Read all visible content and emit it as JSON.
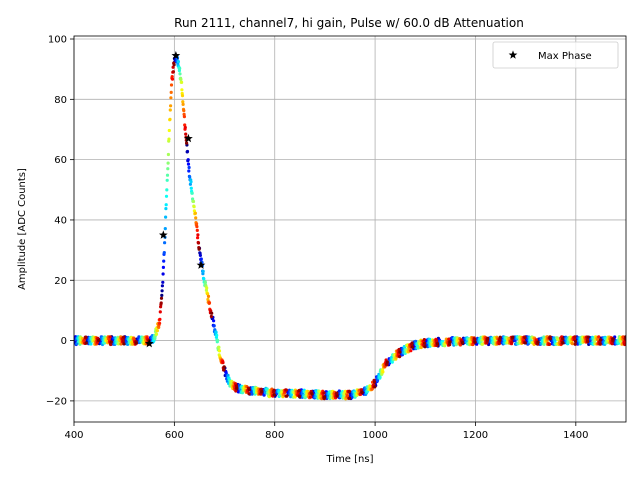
{
  "chart_data": {
    "type": "scatter",
    "title": "Run 2111, channel7, hi gain, Pulse w/ 60.0 dB Attenuation",
    "xlabel": "Time [ns]",
    "ylabel": "Amplitude [ADC Counts]",
    "xlim": [
      400,
      1500
    ],
    "ylim": [
      -27,
      101
    ],
    "xticks": [
      400,
      600,
      800,
      1000,
      1200,
      1400
    ],
    "yticks": [
      -20,
      0,
      20,
      40,
      60,
      80,
      100
    ],
    "grid": true,
    "legend": {
      "position": "top-right",
      "entries": [
        "Max Phase"
      ]
    },
    "colormap": "jet",
    "series": [
      {
        "name": "Max Phase",
        "marker": "star",
        "color": "#000000",
        "x": [
          550,
          578,
          603,
          628,
          653
        ],
        "y": [
          -1,
          35,
          94.5,
          67,
          25
        ]
      }
    ],
    "waveform": {
      "points": [
        [
          400,
          0
        ],
        [
          550,
          0
        ],
        [
          560,
          1
        ],
        [
          570,
          6
        ],
        [
          575,
          14
        ],
        [
          580,
          30
        ],
        [
          585,
          50
        ],
        [
          590,
          70
        ],
        [
          595,
          86
        ],
        [
          600,
          93
        ],
        [
          605,
          93.5
        ],
        [
          610,
          90
        ],
        [
          615,
          84
        ],
        [
          620,
          73
        ],
        [
          625,
          64
        ],
        [
          630,
          55
        ],
        [
          640,
          44
        ],
        [
          650,
          30
        ],
        [
          660,
          20
        ],
        [
          670,
          12
        ],
        [
          680,
          4
        ],
        [
          690,
          -4
        ],
        [
          700,
          -10
        ],
        [
          710,
          -14
        ],
        [
          720,
          -15.5
        ],
        [
          750,
          -16.5
        ],
        [
          800,
          -17.5
        ],
        [
          850,
          -17.5
        ],
        [
          900,
          -18
        ],
        [
          950,
          -18
        ],
        [
          980,
          -17
        ],
        [
          1000,
          -14
        ],
        [
          1020,
          -8
        ],
        [
          1040,
          -5
        ],
        [
          1060,
          -3
        ],
        [
          1080,
          -1.5
        ],
        [
          1100,
          -0.8
        ],
        [
          1150,
          -0.3
        ],
        [
          1200,
          0
        ],
        [
          1500,
          0
        ]
      ]
    }
  }
}
